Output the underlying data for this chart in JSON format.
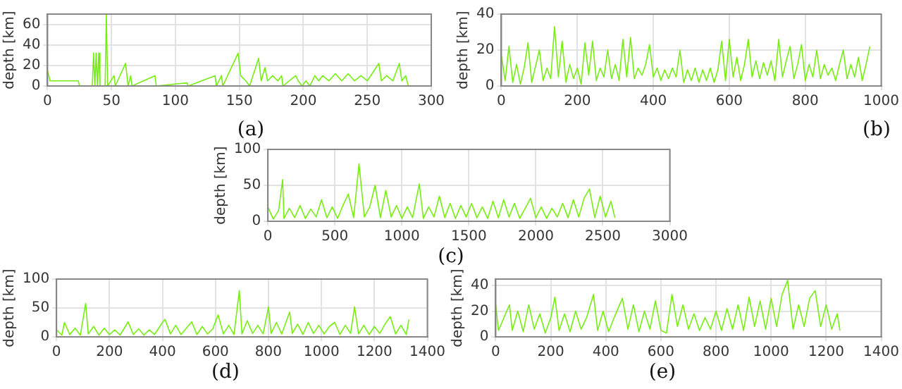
{
  "chart_data": [
    {
      "type": "line",
      "ylabel": "depth [km]",
      "annotations": [
        "(a)"
      ],
      "color": "#77ee11",
      "xlim": [
        0,
        300
      ],
      "xticks": [
        0,
        50,
        100,
        150,
        200,
        250,
        300
      ],
      "ylim": [
        0,
        70
      ],
      "yticks": [
        0,
        20,
        40,
        60
      ],
      "grid": true,
      "x": [
        0,
        2,
        24,
        25,
        35,
        36,
        37,
        38,
        39,
        40,
        41,
        45,
        46,
        47,
        52,
        53,
        61,
        63,
        65,
        66,
        84,
        85,
        109,
        110,
        131,
        132,
        136,
        137,
        149,
        151,
        155,
        158,
        165,
        167,
        170,
        172,
        176,
        180,
        183,
        184,
        194,
        196,
        199,
        202,
        205,
        209,
        212,
        215,
        220,
        225,
        230,
        235,
        240,
        245,
        250,
        259,
        261,
        265,
        270,
        275,
        277,
        280,
        282
      ],
      "values": [
        15,
        5,
        5,
        0,
        0,
        32,
        0,
        32,
        0,
        32,
        0,
        0,
        70,
        0,
        10,
        0,
        22,
        0,
        10,
        0,
        10,
        0,
        3,
        0,
        10,
        0,
        10,
        0,
        32,
        10,
        5,
        0,
        27,
        5,
        18,
        5,
        10,
        5,
        10,
        0,
        10,
        5,
        0,
        5,
        0,
        10,
        5,
        10,
        5,
        12,
        5,
        12,
        5,
        10,
        5,
        22,
        5,
        10,
        5,
        22,
        5,
        10,
        0
      ]
    },
    {
      "type": "line",
      "ylabel": "depth [km]",
      "annotations": [
        "(b)"
      ],
      "color": "#77ee11",
      "xlim": [
        0,
        1000
      ],
      "xticks": [
        0,
        200,
        400,
        600,
        800,
        1000
      ],
      "ylim": [
        0,
        40
      ],
      "yticks": [
        0,
        20,
        40
      ],
      "grid": true,
      "x": [
        0,
        10,
        20,
        30,
        40,
        50,
        60,
        70,
        80,
        90,
        100,
        110,
        120,
        130,
        140,
        150,
        160,
        170,
        180,
        190,
        200,
        210,
        220,
        230,
        240,
        250,
        260,
        270,
        280,
        290,
        300,
        310,
        320,
        330,
        340,
        350,
        360,
        370,
        380,
        390,
        400,
        410,
        420,
        430,
        440,
        450,
        460,
        470,
        480,
        490,
        500,
        510,
        520,
        530,
        540,
        550,
        560,
        570,
        580,
        590,
        600,
        610,
        620,
        630,
        640,
        650,
        660,
        670,
        680,
        690,
        700,
        710,
        720,
        730,
        740,
        750,
        760,
        770,
        780,
        790,
        800,
        810,
        820,
        830,
        840,
        850,
        860,
        870,
        880,
        890,
        900,
        910,
        920,
        930,
        940,
        950,
        960,
        970
      ],
      "values": [
        17,
        3,
        22,
        2,
        12,
        1,
        10,
        24,
        2,
        11,
        20,
        3,
        10,
        4,
        33,
        5,
        25,
        2,
        12,
        4,
        10,
        1,
        24,
        6,
        25,
        3,
        10,
        5,
        20,
        4,
        12,
        3,
        26,
        5,
        27,
        4,
        10,
        6,
        12,
        23,
        5,
        10,
        3,
        9,
        4,
        10,
        5,
        20,
        2,
        9,
        3,
        10,
        2,
        9,
        3,
        10,
        2,
        9,
        25,
        3,
        26,
        5,
        16,
        3,
        12,
        26,
        5,
        14,
        4,
        13,
        6,
        14,
        3,
        26,
        5,
        14,
        22,
        4,
        12,
        23,
        3,
        12,
        5,
        20,
        4,
        12,
        6,
        10,
        3,
        12,
        20,
        4,
        12,
        5,
        16,
        3,
        12,
        22
      ]
    },
    {
      "type": "line",
      "ylabel": "depth [km]",
      "annotations": [
        "(c)"
      ],
      "color": "#77ee11",
      "xlim": [
        0,
        3000
      ],
      "xticks": [
        0,
        500,
        1000,
        1500,
        2000,
        2500,
        3000
      ],
      "ylim": [
        0,
        100
      ],
      "yticks": [
        0,
        50,
        100
      ],
      "grid": true,
      "x": [
        0,
        40,
        80,
        110,
        120,
        160,
        200,
        240,
        280,
        320,
        360,
        400,
        440,
        480,
        520,
        560,
        600,
        640,
        680,
        720,
        760,
        800,
        840,
        880,
        920,
        960,
        1000,
        1040,
        1080,
        1130,
        1160,
        1200,
        1240,
        1280,
        1320,
        1360,
        1400,
        1440,
        1480,
        1520,
        1560,
        1600,
        1640,
        1680,
        1720,
        1760,
        1800,
        1840,
        1880,
        1920,
        1960,
        2000,
        2040,
        2080,
        2120,
        2160,
        2200,
        2240,
        2280,
        2320,
        2360,
        2400,
        2440,
        2480,
        2520,
        2560,
        2590
      ],
      "values": [
        20,
        3,
        15,
        58,
        4,
        18,
        5,
        22,
        4,
        17,
        6,
        30,
        5,
        20,
        4,
        22,
        38,
        5,
        80,
        6,
        20,
        50,
        5,
        43,
        6,
        22,
        4,
        20,
        5,
        52,
        4,
        20,
        6,
        35,
        5,
        25,
        4,
        22,
        6,
        25,
        5,
        20,
        4,
        28,
        5,
        30,
        6,
        25,
        4,
        18,
        32,
        5,
        20,
        4,
        18,
        6,
        25,
        5,
        30,
        6,
        32,
        45,
        5,
        35,
        6,
        28,
        5
      ]
    },
    {
      "type": "line",
      "ylabel": "depth [km]",
      "annotations": [
        "(d)"
      ],
      "color": "#77ee11",
      "xlim": [
        0,
        1400
      ],
      "xticks": [
        0,
        200,
        400,
        600,
        800,
        1000,
        1200,
        1400
      ],
      "ylim": [
        0,
        100
      ],
      "yticks": [
        0,
        50,
        100
      ],
      "grid": true,
      "x": [
        0,
        20,
        30,
        50,
        70,
        90,
        110,
        120,
        140,
        160,
        180,
        200,
        220,
        240,
        260,
        270,
        290,
        310,
        330,
        350,
        370,
        400,
        410,
        430,
        450,
        470,
        490,
        510,
        530,
        550,
        570,
        590,
        610,
        630,
        650,
        670,
        690,
        700,
        720,
        740,
        760,
        780,
        800,
        810,
        830,
        850,
        880,
        890,
        910,
        930,
        950,
        970,
        990,
        1010,
        1030,
        1050,
        1070,
        1090,
        1110,
        1125,
        1140,
        1160,
        1180,
        1200,
        1220,
        1240,
        1260,
        1280,
        1300,
        1320,
        1330
      ],
      "values": [
        12,
        3,
        25,
        4,
        15,
        3,
        58,
        5,
        18,
        3,
        15,
        4,
        12,
        3,
        18,
        26,
        4,
        14,
        3,
        12,
        4,
        25,
        30,
        5,
        20,
        4,
        15,
        26,
        4,
        18,
        5,
        14,
        38,
        5,
        20,
        4,
        80,
        5,
        28,
        6,
        20,
        5,
        52,
        6,
        25,
        5,
        43,
        6,
        22,
        4,
        25,
        6,
        20,
        5,
        18,
        25,
        4,
        20,
        6,
        52,
        5,
        20,
        4,
        18,
        6,
        22,
        35,
        5,
        20,
        4,
        30
      ]
    },
    {
      "type": "line",
      "ylabel": "depth [km]",
      "annotations": [
        "(e)"
      ],
      "color": "#77ee11",
      "xlim": [
        0,
        1400
      ],
      "xticks": [
        0,
        200,
        400,
        600,
        800,
        1000,
        1200,
        1400
      ],
      "ylim": [
        0,
        45
      ],
      "yticks": [
        0,
        20,
        40
      ],
      "grid": true,
      "x": [
        0,
        10,
        30,
        50,
        60,
        80,
        100,
        120,
        140,
        160,
        180,
        200,
        215,
        230,
        250,
        270,
        290,
        310,
        330,
        355,
        370,
        390,
        410,
        430,
        460,
        480,
        500,
        520,
        540,
        560,
        580,
        600,
        620,
        640,
        660,
        680,
        700,
        720,
        740,
        760,
        780,
        800,
        820,
        840,
        860,
        880,
        900,
        920,
        940,
        960,
        980,
        1000,
        1020,
        1040,
        1060,
        1080,
        1100,
        1120,
        1140,
        1160,
        1180,
        1200,
        1220,
        1240,
        1250
      ],
      "values": [
        25,
        5,
        15,
        25,
        5,
        20,
        4,
        25,
        6,
        18,
        3,
        15,
        31,
        5,
        18,
        4,
        20,
        6,
        15,
        33,
        5,
        20,
        4,
        15,
        30,
        6,
        25,
        4,
        20,
        6,
        28,
        5,
        3,
        33,
        8,
        25,
        6,
        18,
        5,
        15,
        6,
        20,
        5,
        22,
        6,
        25,
        5,
        31,
        8,
        28,
        6,
        30,
        8,
        33,
        44,
        6,
        25,
        8,
        30,
        36,
        8,
        25,
        6,
        18,
        5
      ]
    }
  ]
}
